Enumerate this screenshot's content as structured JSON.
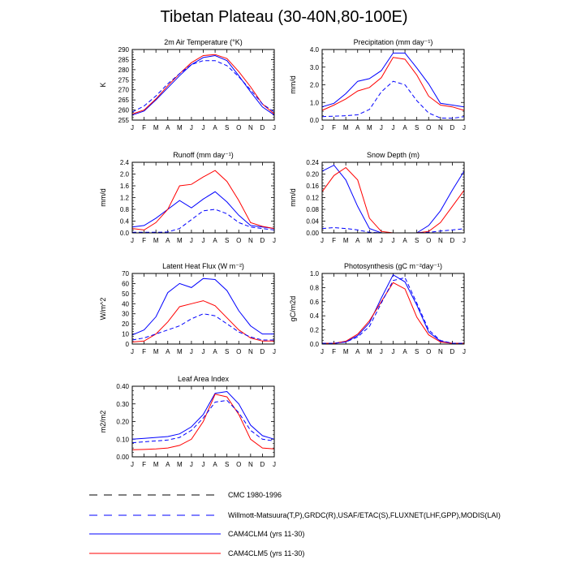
{
  "page": {
    "title": "Tibetan Plateau (30-40N,80-100E)"
  },
  "colors": {
    "cmc": "#000000",
    "obs": "#0000ff",
    "clm4": "#0000ff",
    "clm5": "#ff0000"
  },
  "legend": [
    {
      "label": "CMC 1980-1996",
      "color": "#000000",
      "style": "dashed"
    },
    {
      "label": "Willmott-Matsuura(T,P),GRDC(R),USAF/ETAC(S),FLUXNET(LHF,GPP),MODIS(LAI)",
      "color": "#0000ff",
      "style": "dashed"
    },
    {
      "label": "CAM4CLM4 (yrs 11-30)",
      "color": "#0000ff",
      "style": "solid"
    },
    {
      "label": "CAM4CLM5 (yrs 11-30)",
      "color": "#ff0000",
      "style": "solid"
    }
  ],
  "chart_data": [
    {
      "type": "line",
      "title": "2m Air Temperature (°K)",
      "ylabel": "K",
      "x": [
        "J",
        "F",
        "M",
        "A",
        "M",
        "J",
        "J",
        "A",
        "S",
        "O",
        "N",
        "D",
        "J"
      ],
      "ylim": [
        255,
        290
      ],
      "yticks": [
        "255",
        "260",
        "265",
        "270",
        "275",
        "280",
        "285",
        "290"
      ],
      "series": [
        {
          "name": "CAM4CLM4 (yrs 11-30)",
          "style": "solid",
          "color": "#0000ff",
          "values": [
            257.5,
            259.5,
            265,
            271,
            277,
            282.5,
            286,
            287,
            284.5,
            277,
            269,
            261.5,
            257.5
          ]
        },
        {
          "name": "CAM4CLM5 (yrs 11-30)",
          "style": "solid",
          "color": "#ff0000",
          "values": [
            258,
            260,
            265.5,
            272,
            278,
            283.5,
            287,
            287.5,
            285.5,
            279,
            271.5,
            263,
            258
          ]
        },
        {
          "name": "Willmott-Matsuura(T,P),GRDC(R),USAF/ETAC(S),FLUXNET(LHF,GPP),MODIS(LAI)",
          "style": "dashed",
          "color": "#0000ff",
          "values": [
            259,
            262,
            267,
            273,
            278,
            282.5,
            284.5,
            284.5,
            282,
            276.5,
            270,
            263,
            259
          ]
        }
      ]
    },
    {
      "type": "line",
      "title": "Precipitation (mm day⁻¹)",
      "ylabel": "mm/d",
      "x": [
        "J",
        "F",
        "M",
        "A",
        "M",
        "J",
        "J",
        "A",
        "S",
        "O",
        "N",
        "D",
        "J"
      ],
      "ylim": [
        0,
        4
      ],
      "yticks": [
        "0.0",
        "1.0",
        "2.0",
        "3.0",
        "4.0"
      ],
      "series": [
        {
          "name": "CAM4CLM4 (yrs 11-30)",
          "style": "solid",
          "color": "#0000ff",
          "values": [
            0.75,
            0.95,
            1.5,
            2.2,
            2.35,
            2.8,
            3.8,
            3.8,
            2.95,
            2.05,
            0.95,
            0.85,
            0.75
          ]
        },
        {
          "name": "CAM4CLM5 (yrs 11-30)",
          "style": "solid",
          "color": "#ff0000",
          "values": [
            0.55,
            0.85,
            1.2,
            1.65,
            1.85,
            2.4,
            3.55,
            3.45,
            2.55,
            1.35,
            0.85,
            0.75,
            0.55
          ]
        },
        {
          "name": "Willmott-Matsuura(T,P),GRDC(R),USAF/ETAC(S),FLUXNET(LHF,GPP),MODIS(LAI)",
          "style": "dashed",
          "color": "#0000ff",
          "values": [
            0.2,
            0.22,
            0.25,
            0.3,
            0.6,
            1.6,
            2.2,
            2.0,
            1.1,
            0.4,
            0.12,
            0.1,
            0.2
          ]
        }
      ]
    },
    {
      "type": "line",
      "title": "Runoff (mm day⁻¹)",
      "ylabel": "mm/d",
      "x": [
        "J",
        "F",
        "M",
        "A",
        "M",
        "J",
        "J",
        "A",
        "S",
        "O",
        "N",
        "D",
        "J"
      ],
      "ylim": [
        0,
        2.4
      ],
      "yticks": [
        "0.0",
        "0.4",
        "0.8",
        "1.2",
        "1.6",
        "2.0",
        "2.4"
      ],
      "series": [
        {
          "name": "CAM4CLM4 (yrs 11-30)",
          "style": "solid",
          "color": "#0000ff",
          "values": [
            0.2,
            0.25,
            0.5,
            0.8,
            1.1,
            0.85,
            1.15,
            1.4,
            1.05,
            0.6,
            0.25,
            0.2,
            0.15
          ]
        },
        {
          "name": "CAM4CLM5 (yrs 11-30)",
          "style": "solid",
          "color": "#ff0000",
          "values": [
            0.15,
            0.1,
            0.35,
            0.8,
            1.6,
            1.65,
            1.9,
            2.12,
            1.75,
            1.1,
            0.35,
            0.22,
            0.15
          ]
        },
        {
          "name": "Willmott-Matsuura(T,P),GRDC(R),USAF/ETAC(S),FLUXNET(LHF,GPP),MODIS(LAI)",
          "style": "dashed",
          "color": "#0000ff",
          "values": [
            0.02,
            0.02,
            0.02,
            0.03,
            0.15,
            0.45,
            0.75,
            0.8,
            0.65,
            0.35,
            0.2,
            0.15,
            0.1
          ]
        }
      ]
    },
    {
      "type": "line",
      "title": "Snow Depth (m)",
      "ylabel": "mm/d",
      "x": [
        "J",
        "F",
        "M",
        "A",
        "M",
        "J",
        "J",
        "A",
        "S",
        "O",
        "N",
        "D",
        "J"
      ],
      "ylim": [
        0,
        0.24
      ],
      "yticks": [
        "0.00",
        "0.04",
        "0.08",
        "0.12",
        "0.16",
        "0.20",
        "0.24"
      ],
      "series": [
        {
          "name": "CAM4CLM4 (yrs 11-30)",
          "style": "solid",
          "color": "#0000ff",
          "values": [
            0.21,
            0.23,
            0.18,
            0.09,
            0.015,
            0,
            0,
            0,
            0,
            0.025,
            0.075,
            0.145,
            0.21
          ]
        },
        {
          "name": "CAM4CLM5 (yrs 11-30)",
          "style": "solid",
          "color": "#ff0000",
          "values": [
            0.14,
            0.195,
            0.222,
            0.18,
            0.05,
            0.005,
            0,
            0,
            0,
            0.005,
            0.035,
            0.09,
            0.145
          ]
        },
        {
          "name": "Willmott-Matsuura(T,P),GRDC(R),USAF/ETAC(S),FLUXNET(LHF,GPP),MODIS(LAI)",
          "style": "dashed",
          "color": "#0000ff",
          "values": [
            0.015,
            0.018,
            0.015,
            0.01,
            0.002,
            0,
            0,
            0,
            0,
            0.002,
            0.006,
            0.01,
            0.014
          ]
        }
      ]
    },
    {
      "type": "line",
      "title": "Latent Heat Flux (W m⁻²)",
      "ylabel": "W/m^2",
      "x": [
        "J",
        "F",
        "M",
        "A",
        "M",
        "J",
        "J",
        "A",
        "S",
        "O",
        "N",
        "D",
        "J"
      ],
      "ylim": [
        0,
        70
      ],
      "yticks": [
        "0",
        "10",
        "20",
        "30",
        "40",
        "50",
        "60",
        "70"
      ],
      "series": [
        {
          "name": "CAM4CLM4 (yrs 11-30)",
          "style": "solid",
          "color": "#0000ff",
          "values": [
            9,
            14,
            27,
            51,
            60,
            56,
            65,
            64,
            53,
            33,
            18,
            10,
            10
          ]
        },
        {
          "name": "CAM4CLM5 (yrs 11-30)",
          "style": "solid",
          "color": "#ff0000",
          "values": [
            2,
            3,
            10,
            22,
            37,
            40,
            43,
            38,
            26,
            14,
            6,
            3,
            3
          ]
        },
        {
          "name": "Willmott-Matsuura(T,P),GRDC(R),USAF/ETAC(S),FLUXNET(LHF,GPP),MODIS(LAI)",
          "style": "dashed",
          "color": "#0000ff",
          "values": [
            4,
            6,
            10,
            14,
            18,
            25,
            30,
            28,
            20,
            12,
            7,
            4,
            4
          ]
        }
      ]
    },
    {
      "type": "line",
      "title": "Photosynthesis (gC m⁻²day⁻¹)",
      "ylabel": "gC/m2d",
      "x": [
        "J",
        "F",
        "M",
        "A",
        "M",
        "J",
        "J",
        "A",
        "S",
        "O",
        "N",
        "D",
        "J"
      ],
      "ylim": [
        0,
        1.0
      ],
      "yticks": [
        "0.0",
        "0.2",
        "0.4",
        "0.6",
        "0.8",
        "1.0"
      ],
      "series": [
        {
          "name": "CAM4CLM4 (yrs 11-30)",
          "style": "solid",
          "color": "#0000ff",
          "values": [
            0.01,
            0.01,
            0.03,
            0.12,
            0.3,
            0.65,
            0.98,
            0.88,
            0.55,
            0.17,
            0.04,
            0.01,
            0.01
          ]
        },
        {
          "name": "CAM4CLM5 (yrs 11-30)",
          "style": "solid",
          "color": "#ff0000",
          "values": [
            0.01,
            0.01,
            0.04,
            0.14,
            0.33,
            0.6,
            0.87,
            0.78,
            0.38,
            0.13,
            0.03,
            0.01,
            0.01
          ]
        },
        {
          "name": "Willmott-Matsuura(T,P),GRDC(R),USAF/ETAC(S),FLUXNET(LHF,GPP),MODIS(LAI)",
          "style": "dashed",
          "color": "#0000ff",
          "values": [
            0.01,
            0.01,
            0.03,
            0.1,
            0.25,
            0.58,
            0.9,
            0.94,
            0.58,
            0.2,
            0.05,
            0.01,
            0.01
          ]
        }
      ]
    },
    {
      "type": "line",
      "title": "Leaf Area Index",
      "ylabel": "m2/m2",
      "x": [
        "J",
        "F",
        "M",
        "A",
        "M",
        "J",
        "J",
        "A",
        "S",
        "O",
        "N",
        "D",
        "J"
      ],
      "ylim": [
        0,
        0.4
      ],
      "yticks": [
        "0.00",
        "0.10",
        "0.20",
        "0.30",
        "0.40"
      ],
      "series": [
        {
          "name": "CAM4CLM4 (yrs 11-30)",
          "style": "solid",
          "color": "#0000ff",
          "values": [
            0.1,
            0.105,
            0.11,
            0.115,
            0.13,
            0.17,
            0.24,
            0.36,
            0.37,
            0.3,
            0.18,
            0.12,
            0.1
          ]
        },
        {
          "name": "CAM4CLM5 (yrs 11-30)",
          "style": "solid",
          "color": "#ff0000",
          "values": [
            0.04,
            0.042,
            0.045,
            0.05,
            0.065,
            0.1,
            0.2,
            0.355,
            0.34,
            0.24,
            0.1,
            0.05,
            0.045
          ]
        },
        {
          "name": "Willmott-Matsuura(T,P),GRDC(R),USAF/ETAC(S),FLUXNET(LHF,GPP),MODIS(LAI)",
          "style": "dashed",
          "color": "#0000ff",
          "values": [
            0.08,
            0.085,
            0.09,
            0.095,
            0.11,
            0.15,
            0.22,
            0.31,
            0.32,
            0.25,
            0.15,
            0.1,
            0.09
          ]
        }
      ]
    }
  ]
}
